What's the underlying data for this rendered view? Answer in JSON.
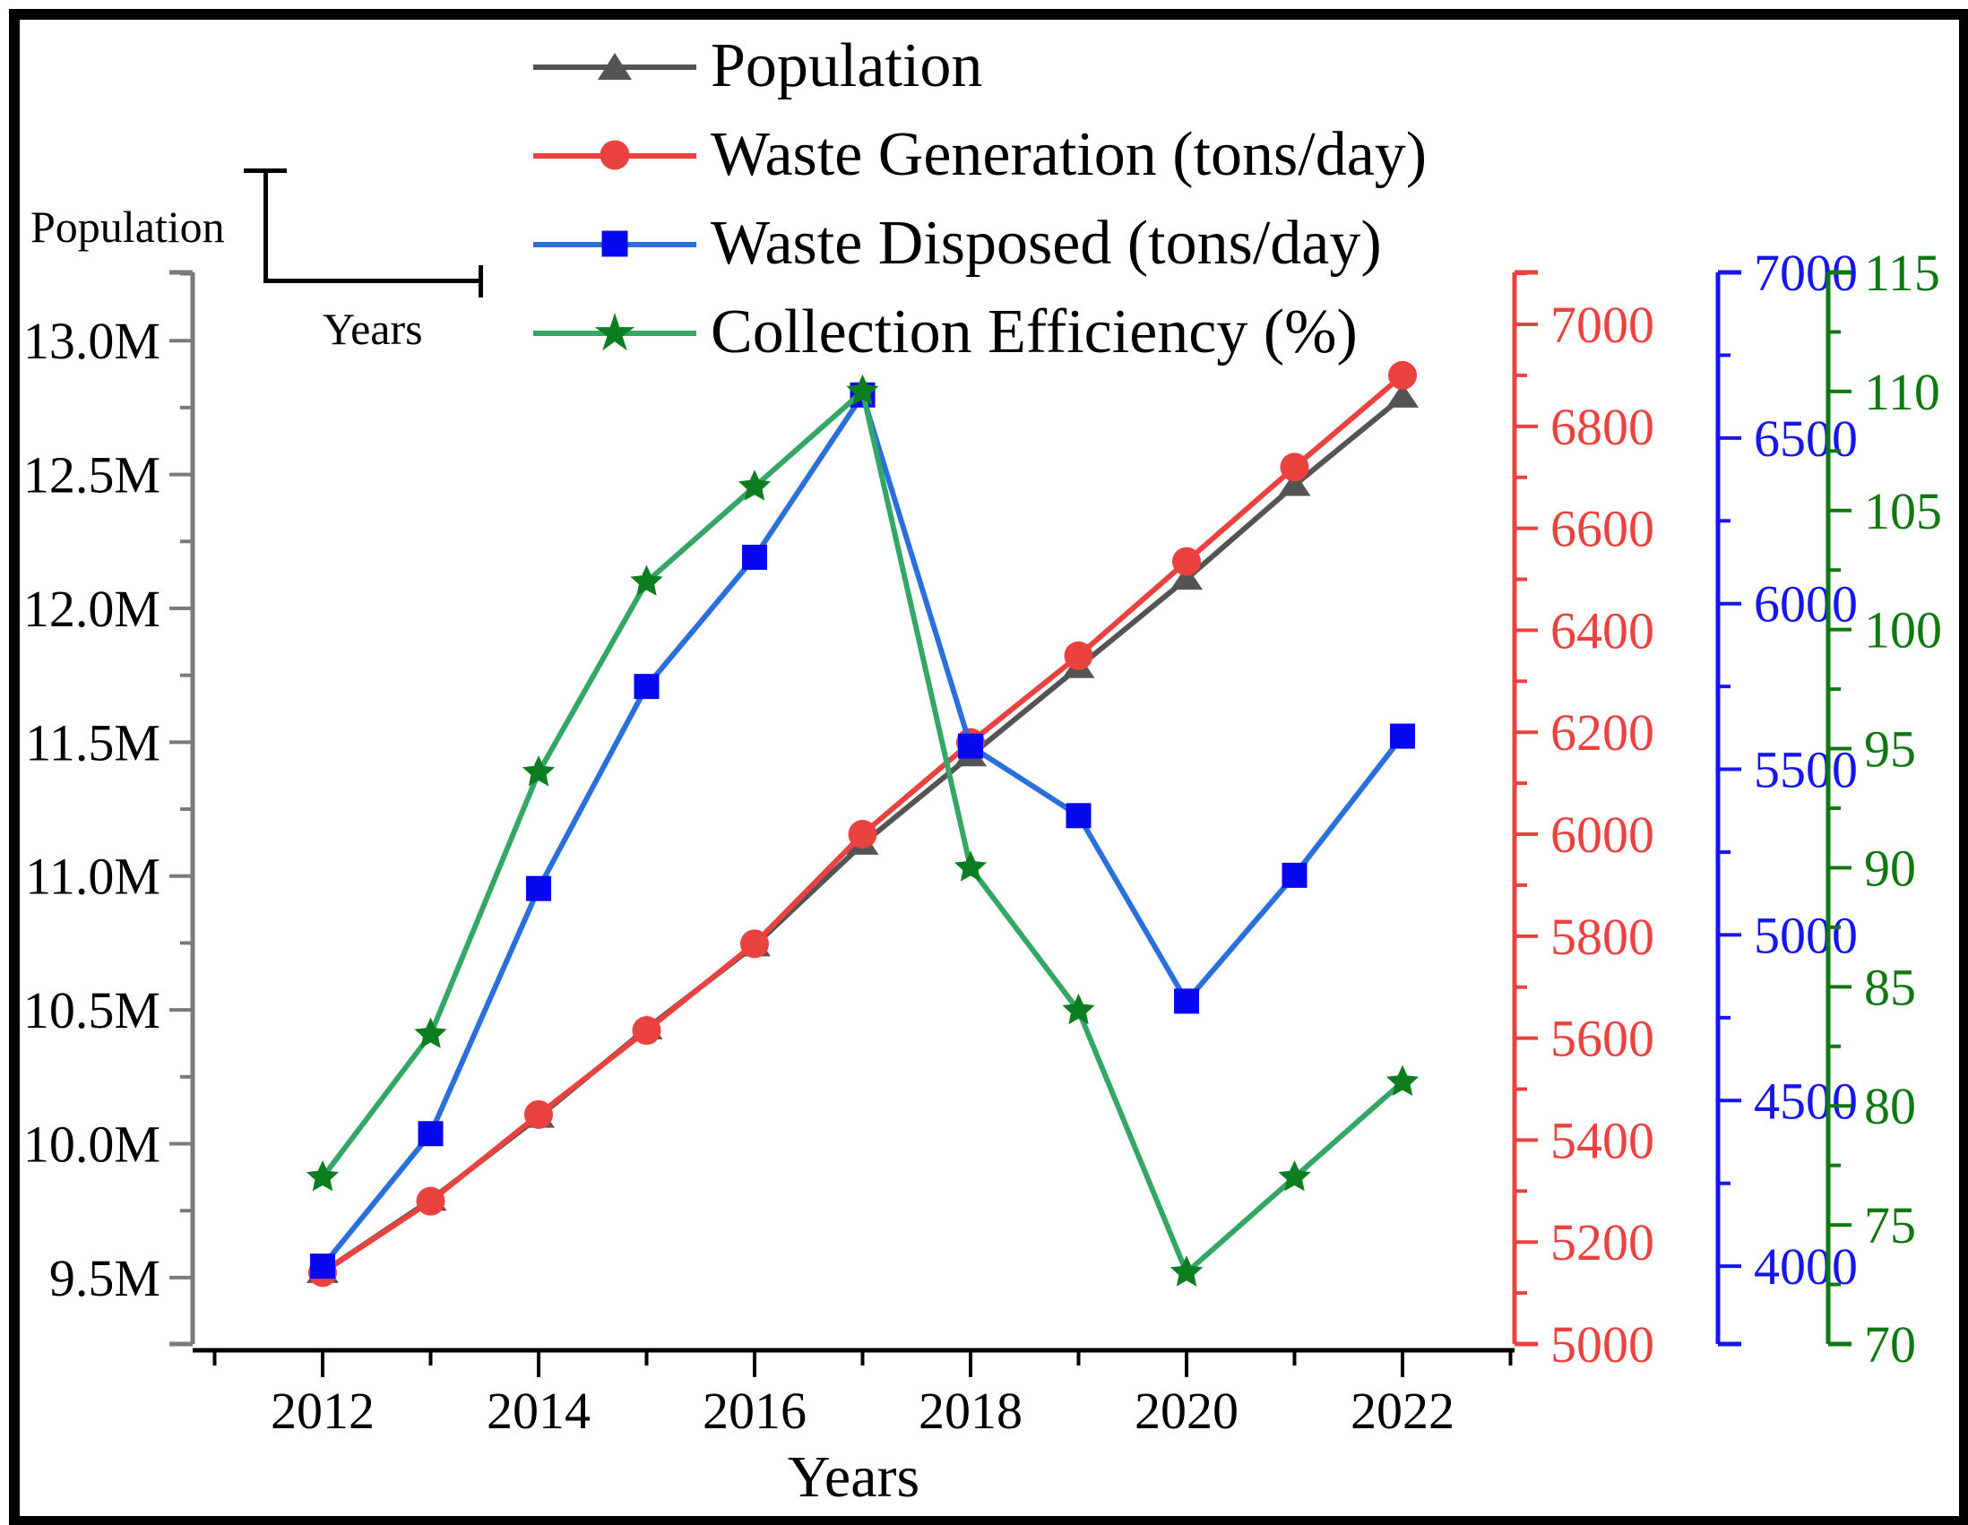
{
  "figure": {
    "legend": {
      "items": [
        {
          "label": "Population"
        },
        {
          "label": "Waste Generation (tons/day)"
        },
        {
          "label": "Waste Disposed (tons/day)"
        },
        {
          "label": "Collection Efficiency (%)"
        }
      ]
    },
    "axis_indicator": {
      "vertical_label": "Population",
      "horizontal_label": "Years"
    }
  },
  "chart_data": {
    "type": "line",
    "title": "",
    "xlabel": "Years",
    "grid": false,
    "legend_position": "top-center",
    "x": [
      2012,
      2013,
      2014,
      2015,
      2016,
      2017,
      2018,
      2019,
      2020,
      2021,
      2022
    ],
    "x_axis": {
      "color": "#000000",
      "range": [
        2010.8,
        2023.04
      ],
      "major_ticks": [
        2012,
        2014,
        2016,
        2018,
        2020,
        2022
      ],
      "minor_ticks": [
        2011,
        2013,
        2015,
        2017,
        2019,
        2021,
        2023
      ]
    },
    "series": [
      {
        "name": "Population",
        "axis": "population",
        "marker": "triangle",
        "color": "#545454",
        "marker_color": "#545454",
        "unit": "millions",
        "values": [
          9.52,
          9.79,
          10.1,
          10.43,
          10.74,
          11.12,
          11.45,
          11.78,
          12.11,
          12.46,
          12.79
        ]
      },
      {
        "name": "Waste Generation (tons/day)",
        "axis": "waste_generation",
        "marker": "circle",
        "color": "#EA423E",
        "marker_color": "#EA423E",
        "unit": "tons/day",
        "values": [
          5140,
          5280,
          5450,
          5615,
          5785,
          6000,
          6180,
          6350,
          6535,
          6720,
          6900
        ]
      },
      {
        "name": "Waste Disposed (tons/day)",
        "axis": "waste_disposed",
        "marker": "square",
        "color": "#2A6FDB",
        "marker_color": "#0808F0",
        "unit": "tons/day",
        "values": [
          4000,
          4400,
          5140,
          5750,
          6140,
          6630,
          5570,
          5360,
          4800,
          5180,
          5600
        ]
      },
      {
        "name": "Collection Efficiency (%)",
        "axis": "collection_efficiency",
        "marker": "star",
        "color": "#34A666",
        "marker_color": "#0C7E1F",
        "unit": "%",
        "values": [
          77,
          83,
          94,
          102,
          106,
          110,
          90,
          84,
          73,
          77,
          81
        ]
      }
    ],
    "y_axes": [
      {
        "id": "population",
        "side": "left",
        "slot": 0,
        "line_color": "#7a7a7a",
        "label_color": "#000000",
        "range_top": 13.255,
        "range_bottom": 9.252,
        "minor_step": 0.25,
        "major_ticks": [
          9.5,
          10.0,
          10.5,
          11.0,
          11.5,
          12.0,
          12.5,
          13.0
        ],
        "tick_labels": [
          "9.5M",
          "10.0M",
          "10.5M",
          "11.0M",
          "11.5M",
          "12.0M",
          "12.5M",
          "13.0M"
        ]
      },
      {
        "id": "waste_generation",
        "side": "right",
        "slot": 0,
        "line_color": "#EA423E",
        "label_color": "#EA423E",
        "range_top": 7102,
        "range_bottom": 5000,
        "minor_step": 100,
        "major_ticks": [
          5000,
          5200,
          5400,
          5600,
          5800,
          6000,
          6200,
          6400,
          6600,
          6800,
          7000
        ],
        "tick_labels": [
          "5000",
          "5200",
          "5400",
          "5600",
          "5800",
          "6000",
          "6200",
          "6400",
          "6600",
          "6800",
          "7000"
        ]
      },
      {
        "id": "waste_disposed",
        "side": "right",
        "slot": 1,
        "line_color": "#1515EC",
        "label_color": "#1515EC",
        "range_top": 7000,
        "range_bottom": 3765,
        "minor_step": 250,
        "major_ticks": [
          4000,
          4500,
          5000,
          5500,
          6000,
          6500,
          7000
        ],
        "tick_labels": [
          "4000",
          "4500",
          "5000",
          "5500",
          "6000",
          "6500",
          "7000"
        ]
      },
      {
        "id": "collection_efficiency",
        "side": "right",
        "slot": 2,
        "line_color": "#107810",
        "label_color": "#107810",
        "range_top": 115,
        "range_bottom": 70,
        "minor_step": 2.5,
        "major_ticks": [
          70,
          75,
          80,
          85,
          90,
          95,
          100,
          105,
          110,
          115
        ],
        "tick_labels": [
          "70",
          "75",
          "80",
          "85",
          "90",
          "95",
          "100",
          "105",
          "110",
          "115"
        ]
      }
    ]
  }
}
